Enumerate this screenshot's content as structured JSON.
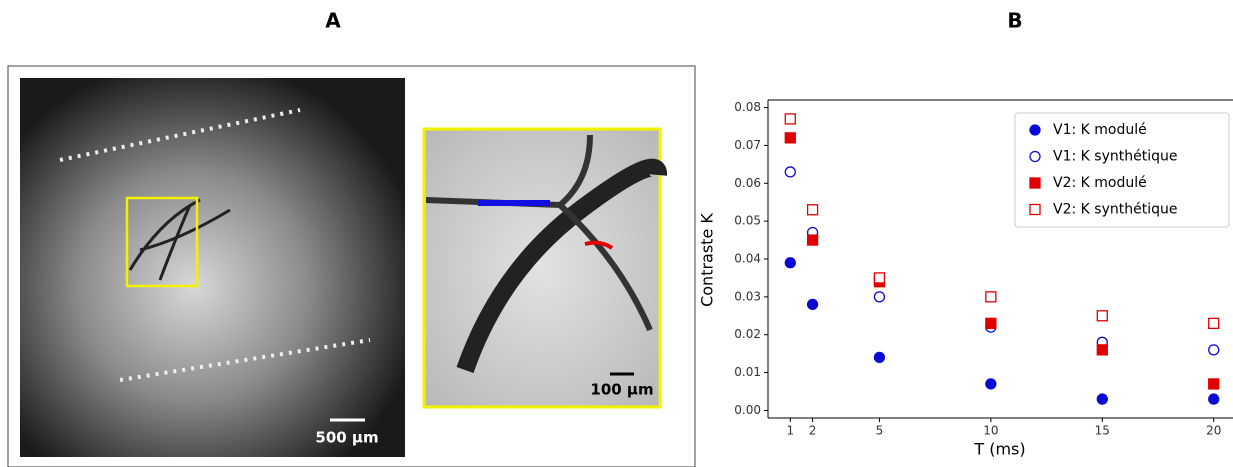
{
  "panels": {
    "a_label": "A",
    "b_label": "B",
    "scale_bar_main": "500 µm",
    "scale_bar_inset": "100 µm"
  },
  "chart_data": {
    "type": "scatter",
    "x_label": "T (ms)",
    "y_label": "Contraste K",
    "x": [
      1,
      2,
      5,
      10,
      15,
      20
    ],
    "series": [
      {
        "name": "V1: K modulé",
        "color": "#0a0ad6",
        "marker": "circle",
        "filled": true,
        "values": [
          0.039,
          0.028,
          0.014,
          0.007,
          0.003,
          0.003
        ]
      },
      {
        "name": "V1: K synthétique",
        "color": "#0a0ad6",
        "marker": "circle",
        "filled": false,
        "values": [
          0.063,
          0.047,
          0.03,
          0.022,
          0.018,
          0.016
        ]
      },
      {
        "name": "V2: K modulé",
        "color": "#e00000",
        "marker": "square",
        "filled": true,
        "values": [
          0.072,
          0.045,
          0.034,
          0.023,
          0.016,
          0.007
        ]
      },
      {
        "name": "V2: K synthétique",
        "color": "#e00000",
        "marker": "square",
        "filled": false,
        "values": [
          0.077,
          0.053,
          0.035,
          0.03,
          0.025,
          0.023
        ]
      }
    ],
    "xlim": [
      0,
      21
    ],
    "ylim": [
      -0.002,
      0.082
    ],
    "xticks": [
      1,
      2,
      5,
      10,
      15,
      20
    ],
    "yticks": [
      {
        "value": 0,
        "label": "0.00"
      },
      {
        "value": 0.01,
        "label": "0.01"
      },
      {
        "value": 0.02,
        "label": "0.02"
      },
      {
        "value": 0.03,
        "label": "0.03"
      },
      {
        "value": 0.04,
        "label": "0.04"
      },
      {
        "value": 0.05,
        "label": "0.05"
      },
      {
        "value": 0.06,
        "label": "0.06"
      },
      {
        "value": 0.07,
        "label": "0.07"
      },
      {
        "value": 0.08,
        "label": "0.08"
      }
    ],
    "legend": "upper right",
    "grid": false
  }
}
